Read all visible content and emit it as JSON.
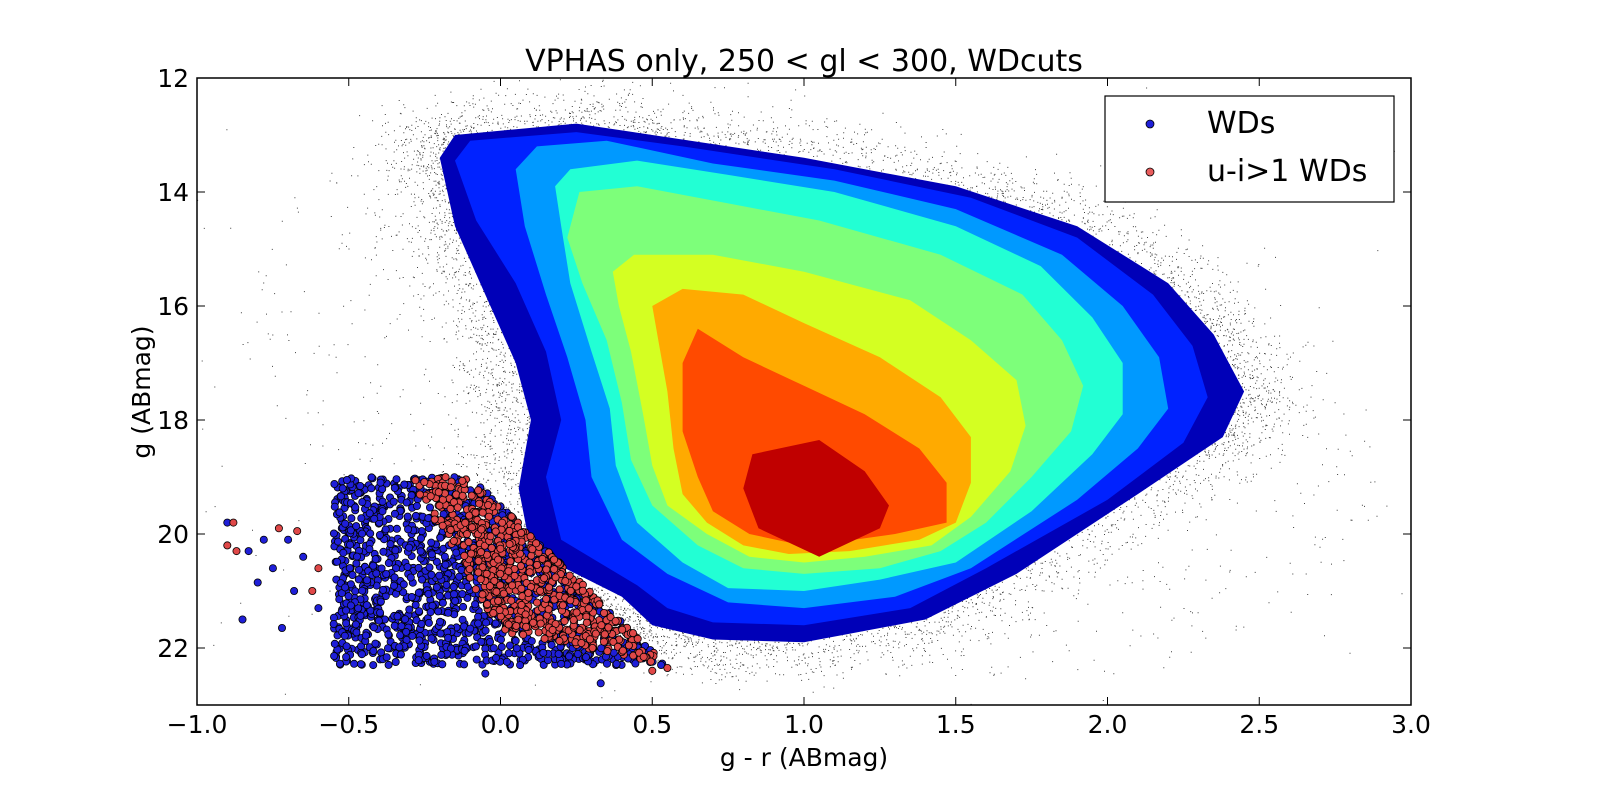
{
  "chart_data": {
    "type": "scatter",
    "title": "VPHAS only, 250 < gl < 300, WDcuts",
    "xlabel": "g - r (ABmag)",
    "ylabel": "g (ABmag)",
    "xlim": [
      -1.0,
      3.0
    ],
    "ylim": [
      23,
      12
    ],
    "y_inverted": true,
    "grid": false,
    "legend_position": "top-right",
    "x_ticks": [
      -1.0,
      -0.5,
      0.0,
      0.5,
      1.0,
      1.5,
      2.0,
      2.5,
      3.0
    ],
    "x_tick_labels": [
      "−1.0",
      "−0.5",
      "0.0",
      "0.5",
      "1.0",
      "1.5",
      "2.0",
      "2.5",
      "3.0"
    ],
    "y_ticks": [
      12,
      14,
      16,
      18,
      20,
      22
    ],
    "y_tick_labels": [
      "12",
      "14",
      "16",
      "18",
      "20",
      "22"
    ],
    "background_stars": {
      "color": "#000000",
      "description_envelope": [
        [
          0.15,
          12.0
        ],
        [
          0.3,
          12.6
        ],
        [
          1.0,
          12.8
        ],
        [
          1.8,
          14.0
        ],
        [
          2.4,
          15.5
        ],
        [
          2.8,
          17.5
        ],
        [
          2.95,
          19.5
        ],
        [
          2.6,
          21.5
        ],
        [
          2.0,
          22.6
        ],
        [
          1.0,
          22.6
        ],
        [
          0.4,
          22.0
        ],
        [
          -0.2,
          20.5
        ],
        [
          -0.6,
          19.0
        ],
        [
          -0.9,
          16.5
        ],
        [
          -0.7,
          14.0
        ],
        [
          -0.2,
          12.5
        ]
      ]
    },
    "density_contours": {
      "levels": [
        {
          "color": "#0000b8",
          "polygon": [
            [
              -0.2,
              13.4
            ],
            [
              -0.15,
              13.0
            ],
            [
              0.25,
              12.8
            ],
            [
              0.5,
              13.0
            ],
            [
              1.0,
              13.4
            ],
            [
              1.5,
              13.9
            ],
            [
              1.9,
              14.6
            ],
            [
              2.2,
              15.6
            ],
            [
              2.35,
              16.5
            ],
            [
              2.45,
              17.5
            ],
            [
              2.38,
              18.3
            ],
            [
              2.1,
              19.3
            ],
            [
              1.7,
              20.7
            ],
            [
              1.4,
              21.5
            ],
            [
              1.0,
              21.9
            ],
            [
              0.7,
              21.85
            ],
            [
              0.5,
              21.6
            ],
            [
              0.4,
              21.1
            ],
            [
              0.1,
              20.3
            ],
            [
              0.06,
              19.2
            ],
            [
              0.1,
              18.0
            ],
            [
              0.05,
              17.0
            ],
            [
              -0.05,
              15.8
            ],
            [
              -0.15,
              14.6
            ]
          ]
        },
        {
          "color": "#0022ff",
          "polygon": [
            [
              -0.15,
              13.45
            ],
            [
              -0.1,
              13.1
            ],
            [
              0.25,
              12.95
            ],
            [
              0.6,
              13.2
            ],
            [
              1.1,
              13.6
            ],
            [
              1.55,
              14.1
            ],
            [
              1.9,
              14.8
            ],
            [
              2.15,
              15.8
            ],
            [
              2.28,
              16.7
            ],
            [
              2.33,
              17.6
            ],
            [
              2.25,
              18.4
            ],
            [
              2.0,
              19.4
            ],
            [
              1.6,
              20.6
            ],
            [
              1.35,
              21.3
            ],
            [
              1.0,
              21.6
            ],
            [
              0.7,
              21.55
            ],
            [
              0.55,
              21.3
            ],
            [
              0.45,
              20.9
            ],
            [
              0.2,
              20.1
            ],
            [
              0.15,
              19.0
            ],
            [
              0.2,
              18.0
            ],
            [
              0.15,
              16.8
            ],
            [
              0.05,
              15.6
            ],
            [
              -0.08,
              14.5
            ]
          ]
        },
        {
          "color": "#0099ff",
          "polygon": [
            [
              0.05,
              13.6
            ],
            [
              0.12,
              13.2
            ],
            [
              0.35,
              13.1
            ],
            [
              0.7,
              13.5
            ],
            [
              1.1,
              13.8
            ],
            [
              1.5,
              14.3
            ],
            [
              1.85,
              15.1
            ],
            [
              2.05,
              16.0
            ],
            [
              2.17,
              16.9
            ],
            [
              2.2,
              17.8
            ],
            [
              2.1,
              18.5
            ],
            [
              1.9,
              19.4
            ],
            [
              1.55,
              20.6
            ],
            [
              1.3,
              21.1
            ],
            [
              1.0,
              21.3
            ],
            [
              0.75,
              21.2
            ],
            [
              0.55,
              20.7
            ],
            [
              0.4,
              20.1
            ],
            [
              0.3,
              19.0
            ],
            [
              0.28,
              18.0
            ],
            [
              0.22,
              16.9
            ],
            [
              0.15,
              15.8
            ],
            [
              0.08,
              14.6
            ]
          ]
        },
        {
          "color": "#22ffd4",
          "polygon": [
            [
              0.18,
              13.9
            ],
            [
              0.23,
              13.6
            ],
            [
              0.45,
              13.45
            ],
            [
              0.75,
              13.7
            ],
            [
              1.1,
              14.0
            ],
            [
              1.5,
              14.6
            ],
            [
              1.78,
              15.3
            ],
            [
              1.95,
              16.2
            ],
            [
              2.05,
              17.0
            ],
            [
              2.05,
              17.9
            ],
            [
              1.95,
              18.6
            ],
            [
              1.75,
              19.6
            ],
            [
              1.5,
              20.5
            ],
            [
              1.25,
              20.8
            ],
            [
              1.0,
              21.0
            ],
            [
              0.75,
              20.95
            ],
            [
              0.6,
              20.5
            ],
            [
              0.45,
              19.8
            ],
            [
              0.38,
              18.8
            ],
            [
              0.36,
              17.8
            ],
            [
              0.3,
              16.8
            ],
            [
              0.23,
              15.6
            ],
            [
              0.2,
              14.6
            ]
          ]
        },
        {
          "color": "#7dff7a",
          "polygon": [
            [
              0.22,
              14.8
            ],
            [
              0.26,
              14.0
            ],
            [
              0.45,
              13.9
            ],
            [
              0.75,
              14.2
            ],
            [
              1.05,
              14.5
            ],
            [
              1.45,
              15.1
            ],
            [
              1.72,
              15.8
            ],
            [
              1.85,
              16.6
            ],
            [
              1.92,
              17.4
            ],
            [
              1.88,
              18.2
            ],
            [
              1.75,
              19.0
            ],
            [
              1.6,
              19.8
            ],
            [
              1.45,
              20.3
            ],
            [
              1.25,
              20.6
            ],
            [
              1.0,
              20.7
            ],
            [
              0.8,
              20.6
            ],
            [
              0.65,
              20.2
            ],
            [
              0.5,
              19.5
            ],
            [
              0.43,
              18.7
            ],
            [
              0.4,
              17.7
            ],
            [
              0.35,
              16.6
            ],
            [
              0.27,
              15.6
            ]
          ]
        },
        {
          "color": "#d4ff22",
          "polygon": [
            [
              0.37,
              15.4
            ],
            [
              0.44,
              15.1
            ],
            [
              0.7,
              15.1
            ],
            [
              1.0,
              15.4
            ],
            [
              1.35,
              15.9
            ],
            [
              1.55,
              16.6
            ],
            [
              1.7,
              17.3
            ],
            [
              1.73,
              18.1
            ],
            [
              1.68,
              18.9
            ],
            [
              1.55,
              19.7
            ],
            [
              1.42,
              20.2
            ],
            [
              1.2,
              20.4
            ],
            [
              1.0,
              20.5
            ],
            [
              0.82,
              20.4
            ],
            [
              0.68,
              20.0
            ],
            [
              0.55,
              19.5
            ],
            [
              0.5,
              18.8
            ],
            [
              0.47,
              17.9
            ],
            [
              0.43,
              16.8
            ],
            [
              0.39,
              16.0
            ]
          ]
        },
        {
          "color": "#ffaa00",
          "polygon": [
            [
              0.5,
              16.0
            ],
            [
              0.6,
              15.7
            ],
            [
              0.8,
              15.8
            ],
            [
              1.0,
              16.3
            ],
            [
              1.25,
              16.9
            ],
            [
              1.45,
              17.6
            ],
            [
              1.55,
              18.3
            ],
            [
              1.55,
              19.1
            ],
            [
              1.5,
              19.8
            ],
            [
              1.38,
              20.1
            ],
            [
              1.15,
              20.3
            ],
            [
              0.95,
              20.35
            ],
            [
              0.8,
              20.2
            ],
            [
              0.68,
              19.8
            ],
            [
              0.6,
              19.3
            ],
            [
              0.57,
              18.5
            ],
            [
              0.55,
              17.5
            ],
            [
              0.52,
              16.6
            ]
          ]
        },
        {
          "color": "#ff4a00",
          "polygon": [
            [
              0.6,
              17.0
            ],
            [
              0.65,
              16.4
            ],
            [
              0.8,
              16.9
            ],
            [
              1.0,
              17.4
            ],
            [
              1.2,
              17.9
            ],
            [
              1.38,
              18.5
            ],
            [
              1.47,
              19.1
            ],
            [
              1.47,
              19.8
            ],
            [
              1.3,
              20.0
            ],
            [
              1.1,
              20.15
            ],
            [
              0.95,
              20.15
            ],
            [
              0.82,
              20.0
            ],
            [
              0.7,
              19.6
            ],
            [
              0.65,
              19.0
            ],
            [
              0.6,
              18.2
            ]
          ]
        },
        {
          "color": "#c00000",
          "polygon": [
            [
              0.83,
              18.6
            ],
            [
              1.05,
              18.35
            ],
            [
              1.2,
              18.9
            ],
            [
              1.28,
              19.5
            ],
            [
              1.25,
              19.9
            ],
            [
              1.05,
              20.4
            ],
            [
              0.85,
              19.9
            ],
            [
              0.8,
              19.2
            ]
          ]
        }
      ]
    },
    "series": [
      {
        "name": "WDs",
        "color": "#1f1fd8",
        "region_corners": [
          [
            -0.55,
            19.0
          ],
          [
            -0.1,
            19.0
          ],
          [
            0.55,
            22.3
          ],
          [
            -0.55,
            22.3
          ]
        ],
        "outliers": [
          [
            -0.9,
            19.8
          ],
          [
            -0.83,
            20.3
          ],
          [
            -0.8,
            20.85
          ],
          [
            -0.85,
            21.5
          ],
          [
            -0.72,
            21.65
          ],
          [
            -0.68,
            21.0
          ],
          [
            -0.6,
            21.3
          ],
          [
            -0.7,
            20.1
          ],
          [
            -0.75,
            20.6
          ],
          [
            0.33,
            22.62
          ],
          [
            -0.05,
            22.45
          ],
          [
            -0.65,
            20.4
          ],
          [
            -0.78,
            20.1
          ]
        ]
      },
      {
        "name": "u-i>1 WDs",
        "color": "#e04848",
        "region_corners": [
          [
            -0.3,
            19.0
          ],
          [
            -0.1,
            19.0
          ],
          [
            0.55,
            22.3
          ],
          [
            0.0,
            21.7
          ]
        ],
        "outliers": [
          [
            -0.88,
            19.8
          ],
          [
            -0.9,
            20.2
          ],
          [
            -0.87,
            20.3
          ],
          [
            -0.73,
            19.9
          ],
          [
            -0.67,
            19.95
          ],
          [
            0.55,
            22.35
          ],
          [
            0.5,
            22.4
          ],
          [
            -0.6,
            20.6
          ],
          [
            -0.62,
            21.0
          ]
        ]
      }
    ]
  }
}
